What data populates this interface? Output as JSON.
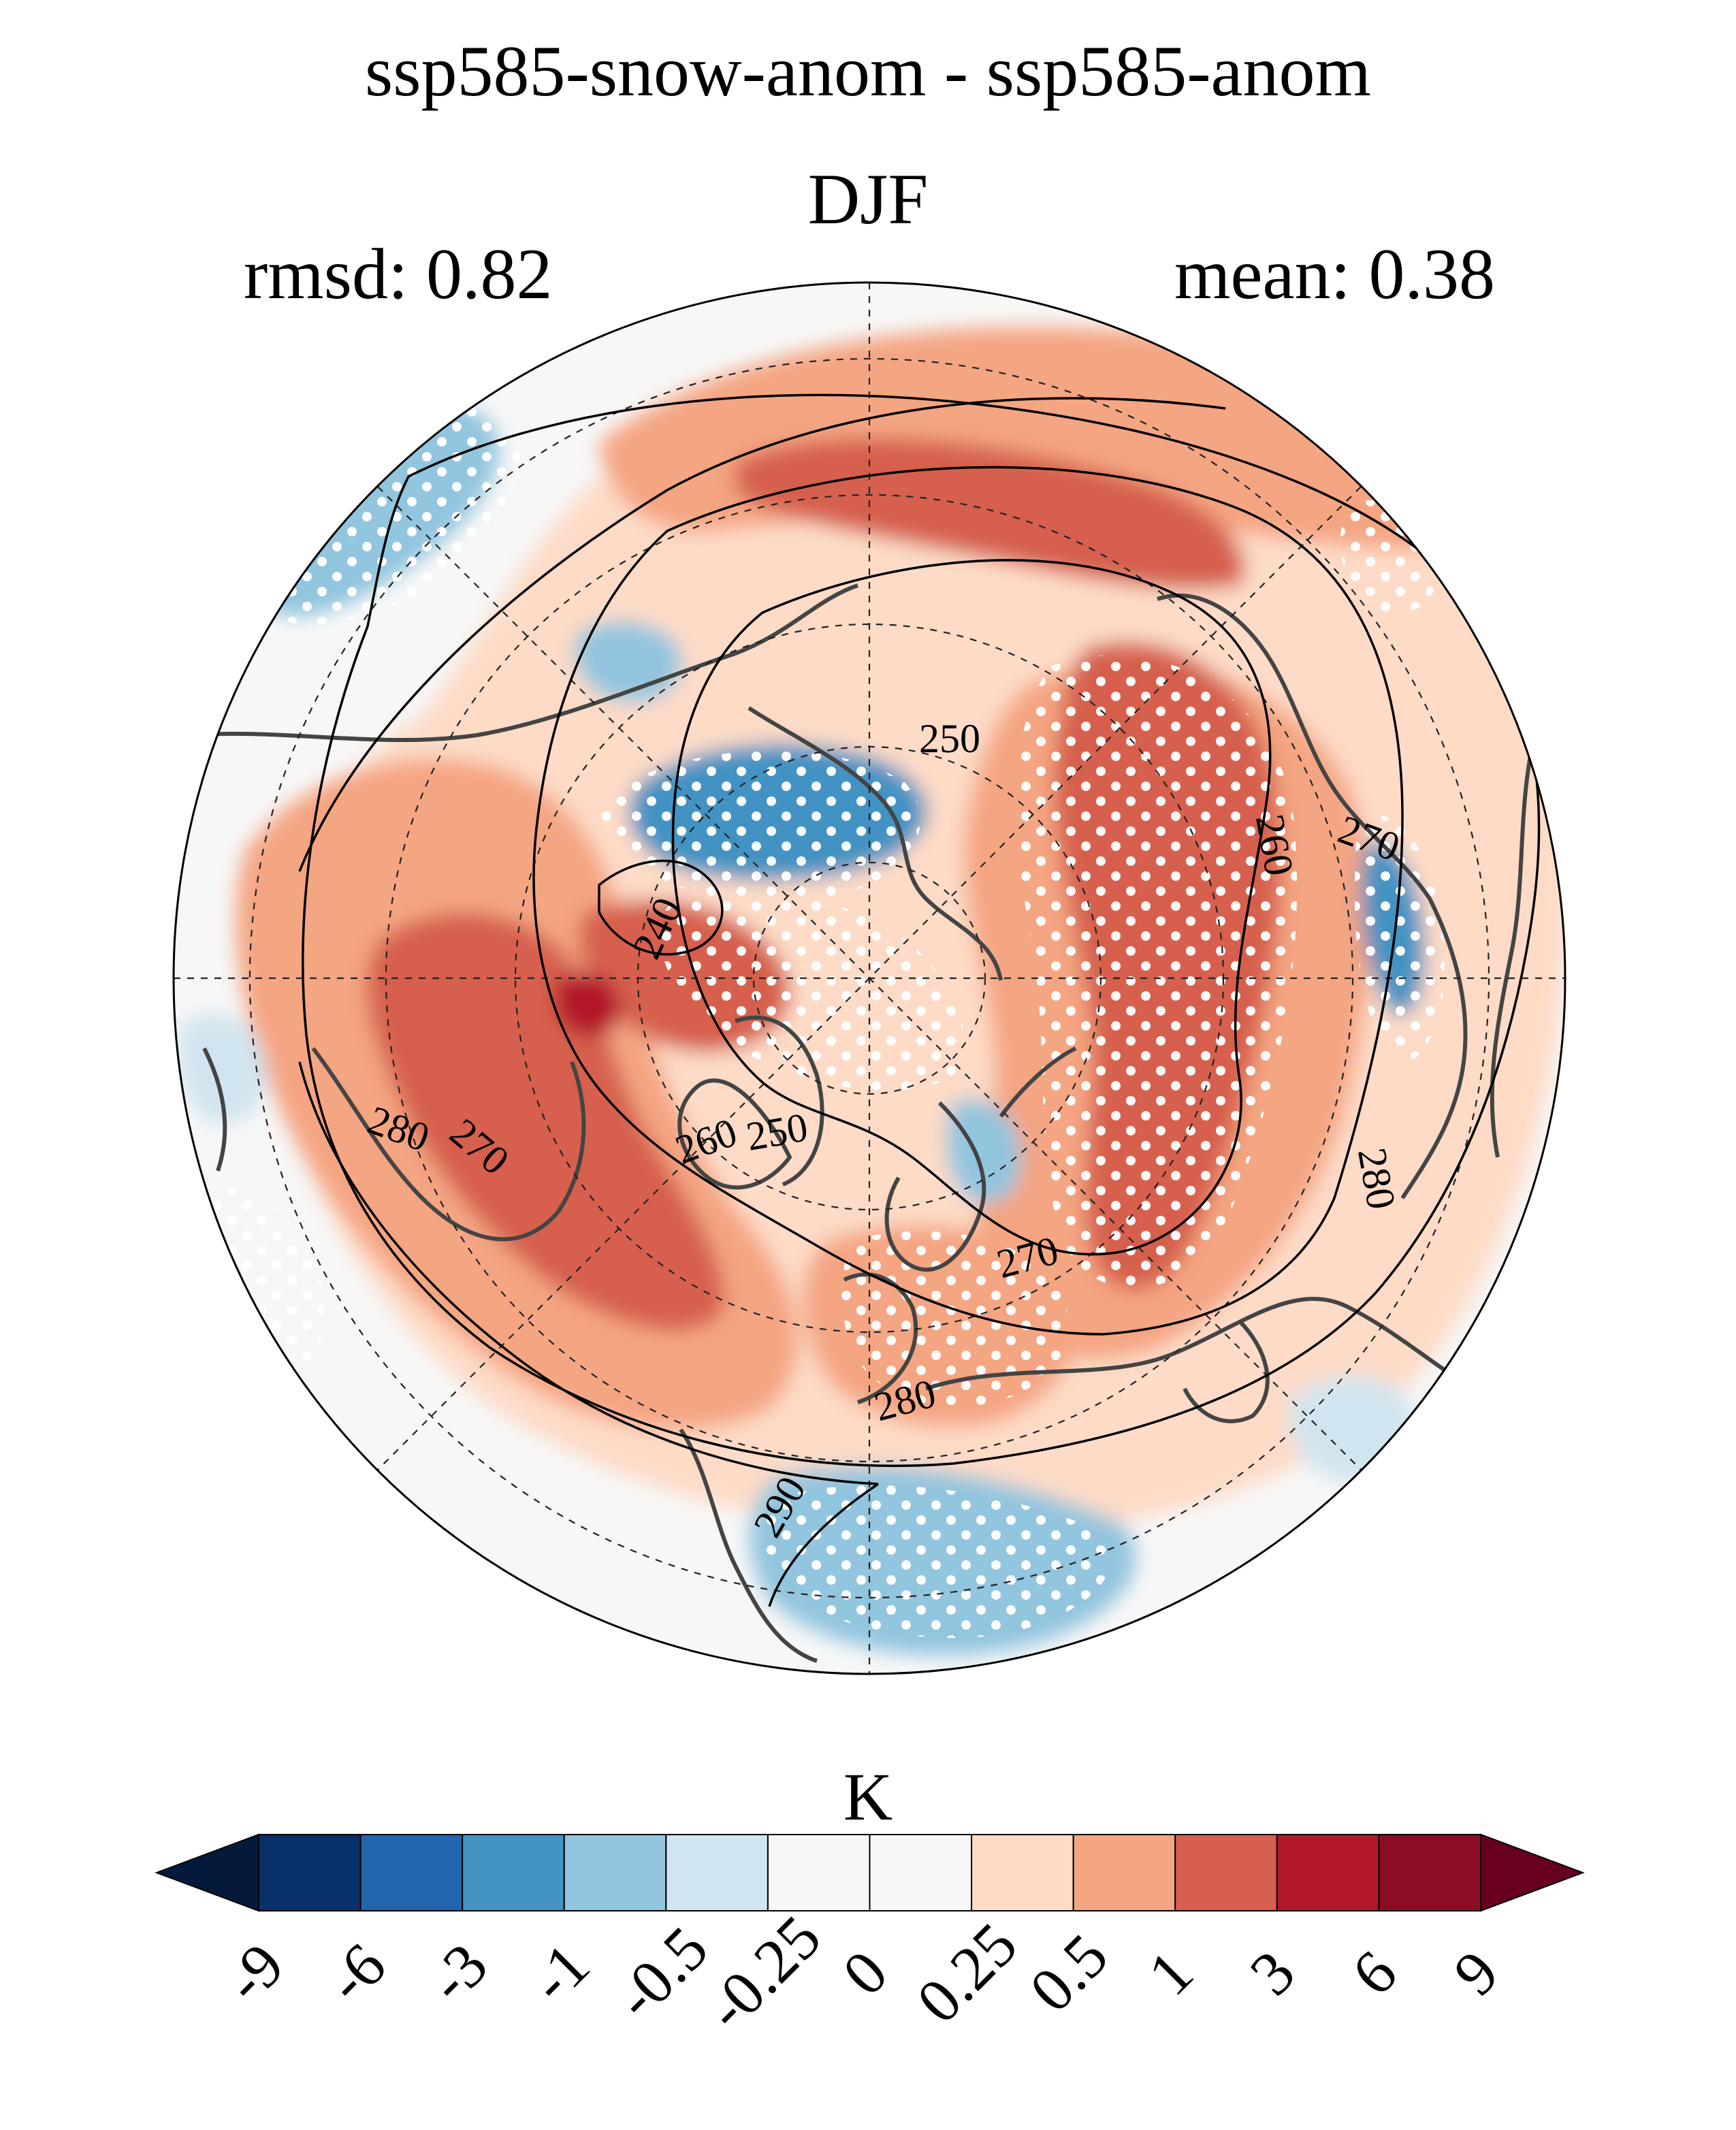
{
  "header": {
    "title": "ssp585-snow-anom - ssp585-anom",
    "season": "DJF",
    "rmsd": "rmsd: 0.82",
    "mean": "mean: 0.38"
  },
  "map": {
    "projection": "north-polar-stereographic",
    "stippling": "white dots",
    "contour_labels": [
      "250",
      "260",
      "270",
      "280",
      "240",
      "280",
      "270",
      "260",
      "250",
      "270",
      "280",
      "290",
      "270",
      "280"
    ]
  },
  "colorbar": {
    "units": "K",
    "ticks": [
      "-9",
      "-6",
      "-3",
      "-1",
      "-0.5",
      "-0.25",
      "0",
      "0.25",
      "0.5",
      "1",
      "3",
      "6",
      "9"
    ],
    "colors": [
      "#08306b",
      "#2166ac",
      "#4393c3",
      "#92c5de",
      "#d1e5f0",
      "#f7f7f7",
      "#f7f7f7",
      "#fddbc7",
      "#f4a582",
      "#d6604d",
      "#b2182b",
      "#8a0c25"
    ],
    "extend_low_color": "#051a3a",
    "extend_high_color": "#67001f"
  }
}
